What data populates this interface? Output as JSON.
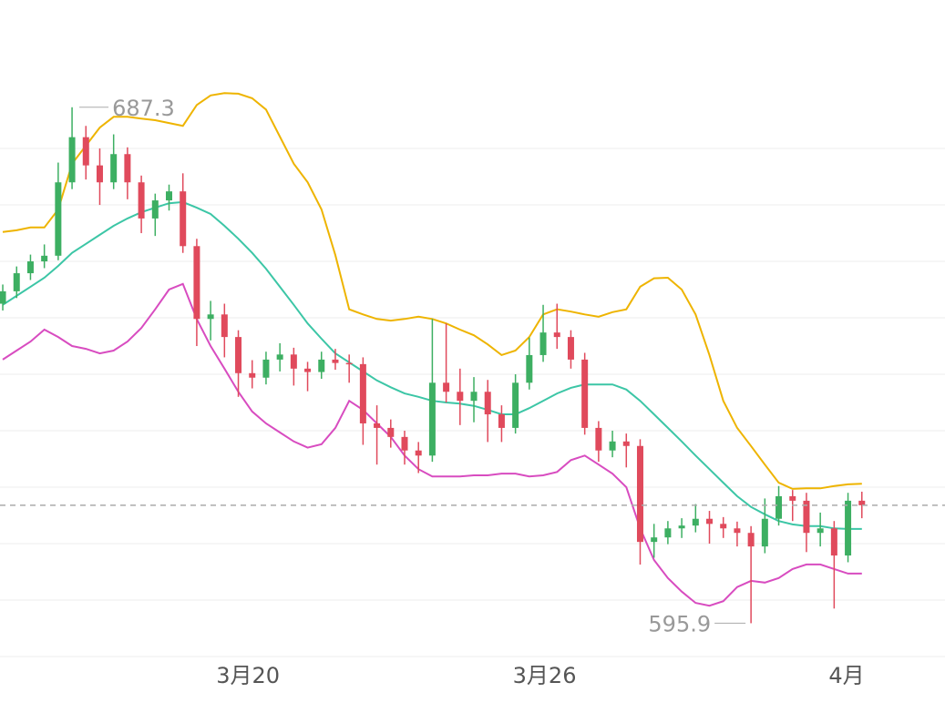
{
  "chart_data": {
    "type": "candlestick",
    "x": [
      0,
      1,
      2,
      3,
      4,
      5,
      6,
      7,
      8,
      9,
      10,
      11,
      12,
      13,
      14,
      15,
      16,
      17,
      18,
      19,
      20,
      21,
      22,
      23,
      24,
      25,
      26,
      27,
      28,
      29,
      30,
      31,
      32,
      33,
      34,
      35,
      36,
      37,
      38,
      39,
      40,
      41,
      42,
      43,
      44,
      45,
      46,
      47,
      48,
      49,
      50,
      51,
      52,
      53,
      54,
      55,
      56,
      57,
      58,
      59,
      60,
      61,
      62
    ],
    "open": [
      652.5,
      654.7,
      657.9,
      660.0,
      661.0,
      674.0,
      682.0,
      677.0,
      674.0,
      679.0,
      674.0,
      667.6,
      670.8,
      672.4,
      662.7,
      649.8,
      650.6,
      646.6,
      640.2,
      639.4,
      642.6,
      643.5,
      641.0,
      640.4,
      642.6,
      642.0,
      641.8,
      631.3,
      630.5,
      628.9,
      626.5,
      625.6,
      638.5,
      636.9,
      635.3,
      636.9,
      632.9,
      630.5,
      638.5,
      643.4,
      647.4,
      646.6,
      642.6,
      630.5,
      626.5,
      628.1,
      627.3,
      610.3,
      611.1,
      612.7,
      613.2,
      614.4,
      613.5,
      612.7,
      611.9,
      609.5,
      614.4,
      618.4,
      617.6,
      611.9,
      612.7,
      607.9,
      617.6
    ],
    "high": [
      655.9,
      659.1,
      661.2,
      663.0,
      677.5,
      687.3,
      684.0,
      680.0,
      682.5,
      680.2,
      675.2,
      672.0,
      673.6,
      675.6,
      664.0,
      653.0,
      652.5,
      647.8,
      642.5,
      644.0,
      645.5,
      644.7,
      642.2,
      644.0,
      644.5,
      643.5,
      643.0,
      634.5,
      632.0,
      630.0,
      628.0,
      649.8,
      649.0,
      641.0,
      639.5,
      639.0,
      634.5,
      640.0,
      646.5,
      652.3,
      652.5,
      647.8,
      643.8,
      631.7,
      630.0,
      629.5,
      628.5,
      613.5,
      614.0,
      614.5,
      617.0,
      615.8,
      614.7,
      613.9,
      613.1,
      618.0,
      620.2,
      619.5,
      619.0,
      615.5,
      614.0,
      619.0,
      619.2
    ],
    "low": [
      651.3,
      653.5,
      656.7,
      658.8,
      660.2,
      672.8,
      674.5,
      670.0,
      672.8,
      671.0,
      665.0,
      664.5,
      669.0,
      661.5,
      645.0,
      646.0,
      643.0,
      636.0,
      637.5,
      638.2,
      640.5,
      638.0,
      637.0,
      639.2,
      640.8,
      638.5,
      627.5,
      624.0,
      627.0,
      624.0,
      622.5,
      624.5,
      635.0,
      631.0,
      631.5,
      628.0,
      628.0,
      629.5,
      637.3,
      642.2,
      644.5,
      641.0,
      629.3,
      624.5,
      625.3,
      623.5,
      606.3,
      607.5,
      609.9,
      611.0,
      612.0,
      610.0,
      611.0,
      609.5,
      595.9,
      608.3,
      613.2,
      614.0,
      608.5,
      609.5,
      598.5,
      606.7,
      614.5
    ],
    "close": [
      654.7,
      657.9,
      660.0,
      661.0,
      674.0,
      682.0,
      677.0,
      674.0,
      679.0,
      674.0,
      667.6,
      670.8,
      672.4,
      662.7,
      649.8,
      650.6,
      646.6,
      640.2,
      639.4,
      642.6,
      643.5,
      641.0,
      640.4,
      642.6,
      642.0,
      641.8,
      631.3,
      630.5,
      628.9,
      626.5,
      625.6,
      638.5,
      636.9,
      635.3,
      636.9,
      632.9,
      630.5,
      638.5,
      643.4,
      647.4,
      646.6,
      642.6,
      630.5,
      626.5,
      628.1,
      627.3,
      610.3,
      611.1,
      612.7,
      613.2,
      614.4,
      613.5,
      612.7,
      611.9,
      609.5,
      614.4,
      618.4,
      617.6,
      611.9,
      612.7,
      607.9,
      617.6,
      616.8
    ],
    "up_color": "#3daf62",
    "down_color": "#e04a5c",
    "bands": [
      {
        "color": "#eeb400",
        "values": [
          665.2,
          665.5,
          666,
          666,
          669.2,
          677.3,
          680.5,
          683.7,
          685.6,
          685.6,
          685.3,
          685,
          684.5,
          684,
          687.7,
          689.4,
          689.8,
          689.7,
          688.9,
          686.9,
          682.1,
          677.3,
          674,
          669.2,
          661.1,
          651.5,
          650.6,
          649.8,
          649.5,
          649.8,
          650.2,
          649.8,
          649,
          647.9,
          646.9,
          645.3,
          643.4,
          644.2,
          646.6,
          650.6,
          651.5,
          651.1,
          650.6,
          650.2,
          651,
          651.5,
          655.5,
          657,
          657.1,
          655,
          650.6,
          643.4,
          635.3,
          630.5,
          627.3,
          624,
          620.8,
          619.7,
          619.8,
          619.8,
          620.2,
          620.5,
          620.6
        ]
      },
      {
        "color": "#3cc6a6",
        "values": [
          652.3,
          653.9,
          655.5,
          657.1,
          659.2,
          661.5,
          663.1,
          664.7,
          666.3,
          667.6,
          668.7,
          669.5,
          670.3,
          670.5,
          669.5,
          668.4,
          666.3,
          664,
          661.5,
          658.7,
          655.5,
          652.3,
          649,
          646.3,
          643.7,
          642.1,
          640.5,
          638.9,
          637.7,
          636.6,
          636,
          635.3,
          635,
          634.8,
          634.4,
          633.7,
          632.9,
          632.9,
          634,
          635.3,
          636.6,
          637.6,
          638.2,
          638.2,
          638.2,
          637.3,
          635.3,
          632.9,
          630.5,
          628.1,
          625.6,
          623.2,
          620.8,
          618.4,
          616.5,
          615.2,
          614,
          613.4,
          613.1,
          613.1,
          612.7,
          612.6,
          612.6
        ]
      },
      {
        "color": "#d84cc0",
        "values": [
          642.6,
          644.2,
          645.8,
          647.9,
          646.6,
          645,
          644.5,
          643.7,
          644.2,
          645.8,
          648.2,
          651.5,
          655,
          656,
          649.8,
          645,
          641,
          636.9,
          633.4,
          631.3,
          629.7,
          628.1,
          627,
          627.6,
          630.5,
          635.3,
          633.7,
          631.3,
          628.9,
          625.6,
          623.2,
          621.9,
          621.9,
          621.9,
          622.1,
          622.1,
          622.4,
          622.4,
          621.9,
          622.1,
          622.7,
          624.8,
          625.6,
          624,
          622.4,
          620,
          612.7,
          607.1,
          603.9,
          601.5,
          599.5,
          599,
          599.8,
          602.3,
          603.4,
          603.1,
          603.9,
          605.5,
          606.3,
          606.3,
          605.5,
          604.7,
          604.7
        ]
      }
    ],
    "xlim": [
      -0.2,
      68
    ],
    "xticks": [
      {
        "value": 17.7,
        "label": "3月20"
      },
      {
        "value": 39.1,
        "label": "3月26"
      },
      {
        "value": 60.9,
        "label": "4月"
      }
    ],
    "ylim": [
      590,
      706.3
    ],
    "yticks": [
      590,
      600,
      610,
      620,
      630,
      640,
      650,
      660,
      670,
      680
    ],
    "grid": true
  }
}
